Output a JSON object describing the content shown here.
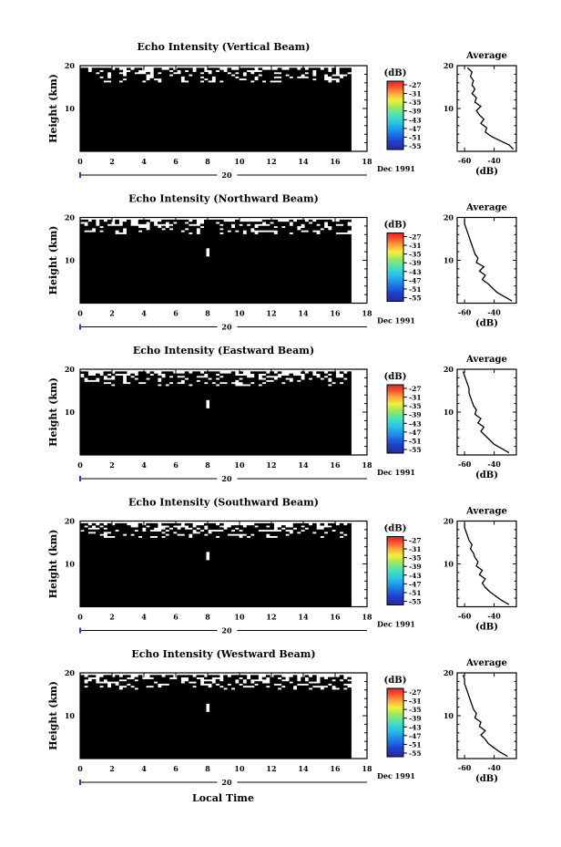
{
  "chart_data": {
    "type": "heatmap",
    "panels": [
      {
        "title": "Echo Intensity (Vertical Beam)",
        "ylabel": "Height (km)",
        "ylim": [
          0,
          20
        ],
        "xlim": [
          0,
          18
        ],
        "x_ticks": [
          "0",
          "2",
          "4",
          "6",
          "8",
          "10",
          "12",
          "14",
          "16",
          "18"
        ],
        "y_ticks": [
          "20",
          "10"
        ],
        "date_label": "20",
        "month_label": "Dec 1991",
        "colorbar_unit": "(dB)",
        "colorbar_labels": [
          "-27",
          "-31",
          "-35",
          "-39",
          "-43",
          "-47",
          "-51",
          "-55"
        ],
        "average": {
          "title": "Average",
          "xlabel": "(dB)",
          "x_ticks": [
            "-60",
            "-40"
          ],
          "y_ticks": [
            "20",
            "10"
          ],
          "profile": [
            [
              -27,
              0.5
            ],
            [
              -30,
              1.5
            ],
            [
              -36,
              2.5
            ],
            [
              -42,
              3.5
            ],
            [
              -46,
              4.5
            ],
            [
              -45,
              5.5
            ],
            [
              -49,
              6.5
            ],
            [
              -47,
              7.5
            ],
            [
              -50,
              8.5
            ],
            [
              -52,
              9.5
            ],
            [
              -49,
              10.5
            ],
            [
              -53,
              11.5
            ],
            [
              -52,
              12.5
            ],
            [
              -55,
              13.5
            ],
            [
              -53,
              14.5
            ],
            [
              -55,
              15.5
            ],
            [
              -54,
              16.5
            ],
            [
              -56,
              17.5
            ],
            [
              -55,
              18.5
            ],
            [
              -58,
              19.5
            ]
          ]
        }
      },
      {
        "title": "Echo Intensity (Northward Beam)",
        "ylabel": "Height (km)",
        "ylim": [
          0,
          20
        ],
        "xlim": [
          0,
          18
        ],
        "x_ticks": [
          "0",
          "2",
          "4",
          "6",
          "8",
          "10",
          "12",
          "14",
          "16",
          "18"
        ],
        "y_ticks": [
          "20",
          "10"
        ],
        "date_label": "20",
        "month_label": "Dec 1991",
        "colorbar_unit": "(dB)",
        "colorbar_labels": [
          "-27",
          "-31",
          "-35",
          "-39",
          "-43",
          "-47",
          "-51",
          "-55"
        ],
        "average": {
          "title": "Average",
          "xlabel": "(dB)",
          "x_ticks": [
            "-60",
            "-40"
          ],
          "y_ticks": [
            "20",
            "10"
          ],
          "profile": [
            [
              -28,
              0.5
            ],
            [
              -33,
              1.5
            ],
            [
              -38,
              2.5
            ],
            [
              -41,
              3.5
            ],
            [
              -44,
              4.5
            ],
            [
              -48,
              5.5
            ],
            [
              -46,
              6.5
            ],
            [
              -50,
              7.5
            ],
            [
              -47,
              8.5
            ],
            [
              -52,
              9.5
            ],
            [
              -51,
              10.5
            ],
            [
              -53,
              11.5
            ],
            [
              -54,
              12.5
            ],
            [
              -55,
              13.5
            ],
            [
              -56,
              14.5
            ],
            [
              -57,
              15.5
            ],
            [
              -58,
              16.5
            ],
            [
              -59,
              17.5
            ],
            [
              -60,
              18.5
            ],
            [
              -60,
              19.5
            ]
          ]
        }
      },
      {
        "title": "Echo Intensity (Eastward Beam)",
        "ylabel": "Height (km)",
        "ylim": [
          0,
          20
        ],
        "xlim": [
          0,
          18
        ],
        "x_ticks": [
          "0",
          "2",
          "4",
          "6",
          "8",
          "10",
          "12",
          "14",
          "16",
          "18"
        ],
        "y_ticks": [
          "20",
          "10"
        ],
        "date_label": "20",
        "month_label": "Dec 1991",
        "colorbar_unit": "(dB)",
        "colorbar_labels": [
          "-27",
          "-31",
          "-35",
          "-39",
          "-43",
          "-47",
          "-51",
          "-55"
        ],
        "average": {
          "title": "Average",
          "xlabel": "(dB)",
          "x_ticks": [
            "-60",
            "-40"
          ],
          "y_ticks": [
            "20",
            "10"
          ],
          "profile": [
            [
              -30,
              0.5
            ],
            [
              -35,
              1.5
            ],
            [
              -40,
              2.5
            ],
            [
              -43,
              3.5
            ],
            [
              -46,
              4.5
            ],
            [
              -49,
              5.5
            ],
            [
              -47,
              6.5
            ],
            [
              -51,
              7.5
            ],
            [
              -49,
              8.5
            ],
            [
              -53,
              9.5
            ],
            [
              -52,
              10.5
            ],
            [
              -54,
              11.5
            ],
            [
              -55,
              12.5
            ],
            [
              -56,
              13.5
            ],
            [
              -57,
              14.5
            ],
            [
              -57,
              15.5
            ],
            [
              -58,
              16.5
            ],
            [
              -59,
              17.5
            ],
            [
              -60,
              18.5
            ],
            [
              -61,
              19.5
            ]
          ]
        }
      },
      {
        "title": "Echo Intensity (Southward Beam)",
        "ylabel": "Height (km)",
        "ylim": [
          0,
          20
        ],
        "xlim": [
          0,
          18
        ],
        "x_ticks": [
          "0",
          "2",
          "4",
          "6",
          "8",
          "10",
          "12",
          "14",
          "16",
          "18"
        ],
        "y_ticks": [
          "20",
          "10"
        ],
        "date_label": "20",
        "month_label": "Dec 1991",
        "colorbar_unit": "(dB)",
        "colorbar_labels": [
          "-27",
          "-31",
          "-35",
          "-39",
          "-43",
          "-47",
          "-51",
          "-55"
        ],
        "average": {
          "title": "Average",
          "xlabel": "(dB)",
          "x_ticks": [
            "-60",
            "-40"
          ],
          "y_ticks": [
            "20",
            "10"
          ],
          "profile": [
            [
              -30,
              0.5
            ],
            [
              -35,
              1.5
            ],
            [
              -39,
              2.5
            ],
            [
              -43,
              3.5
            ],
            [
              -46,
              4.5
            ],
            [
              -48,
              5.5
            ],
            [
              -46,
              6.5
            ],
            [
              -50,
              7.5
            ],
            [
              -48,
              8.5
            ],
            [
              -52,
              9.5
            ],
            [
              -51,
              10.5
            ],
            [
              -53,
              11.5
            ],
            [
              -54,
              12.5
            ],
            [
              -56,
              13.5
            ],
            [
              -55,
              14.5
            ],
            [
              -57,
              15.5
            ],
            [
              -58,
              16.5
            ],
            [
              -59,
              17.5
            ],
            [
              -60,
              18.5
            ],
            [
              -60,
              19.5
            ]
          ]
        }
      },
      {
        "title": "Echo Intensity (Westward Beam)",
        "ylabel": "Height (km)",
        "ylim": [
          0,
          20
        ],
        "xlim": [
          0,
          18
        ],
        "x_ticks": [
          "0",
          "2",
          "4",
          "6",
          "8",
          "10",
          "12",
          "14",
          "16",
          "18"
        ],
        "y_ticks": [
          "20",
          "10"
        ],
        "date_label": "20",
        "month_label": "Dec 1991",
        "colorbar_unit": "(dB)",
        "colorbar_labels": [
          "-27",
          "-31",
          "-35",
          "-39",
          "-43",
          "-47",
          "-51",
          "-55"
        ],
        "average": {
          "title": "Average",
          "xlabel": "(dB)",
          "x_ticks": [
            "-60",
            "-40"
          ],
          "y_ticks": [
            "20",
            "10"
          ],
          "profile": [
            [
              -31,
              0.5
            ],
            [
              -36,
              1.5
            ],
            [
              -40,
              2.5
            ],
            [
              -44,
              3.5
            ],
            [
              -46,
              4.5
            ],
            [
              -49,
              5.5
            ],
            [
              -46,
              6.5
            ],
            [
              -50,
              7.5
            ],
            [
              -49,
              8.5
            ],
            [
              -53,
              9.5
            ],
            [
              -52,
              10.5
            ],
            [
              -54,
              11.5
            ],
            [
              -55,
              12.5
            ],
            [
              -56,
              13.5
            ],
            [
              -57,
              14.5
            ],
            [
              -58,
              15.5
            ],
            [
              -59,
              16.5
            ],
            [
              -60,
              17.5
            ],
            [
              -60,
              18.5
            ],
            [
              -61,
              19.5
            ]
          ]
        }
      }
    ],
    "xlabel": "Local Time",
    "colormap": [
      "#2a2c8a",
      "#1f3fd0",
      "#1f7fe8",
      "#28c0e8",
      "#48e0c0",
      "#9ae860",
      "#f0f040",
      "#f8a838",
      "#f05030",
      "#e82020"
    ]
  }
}
